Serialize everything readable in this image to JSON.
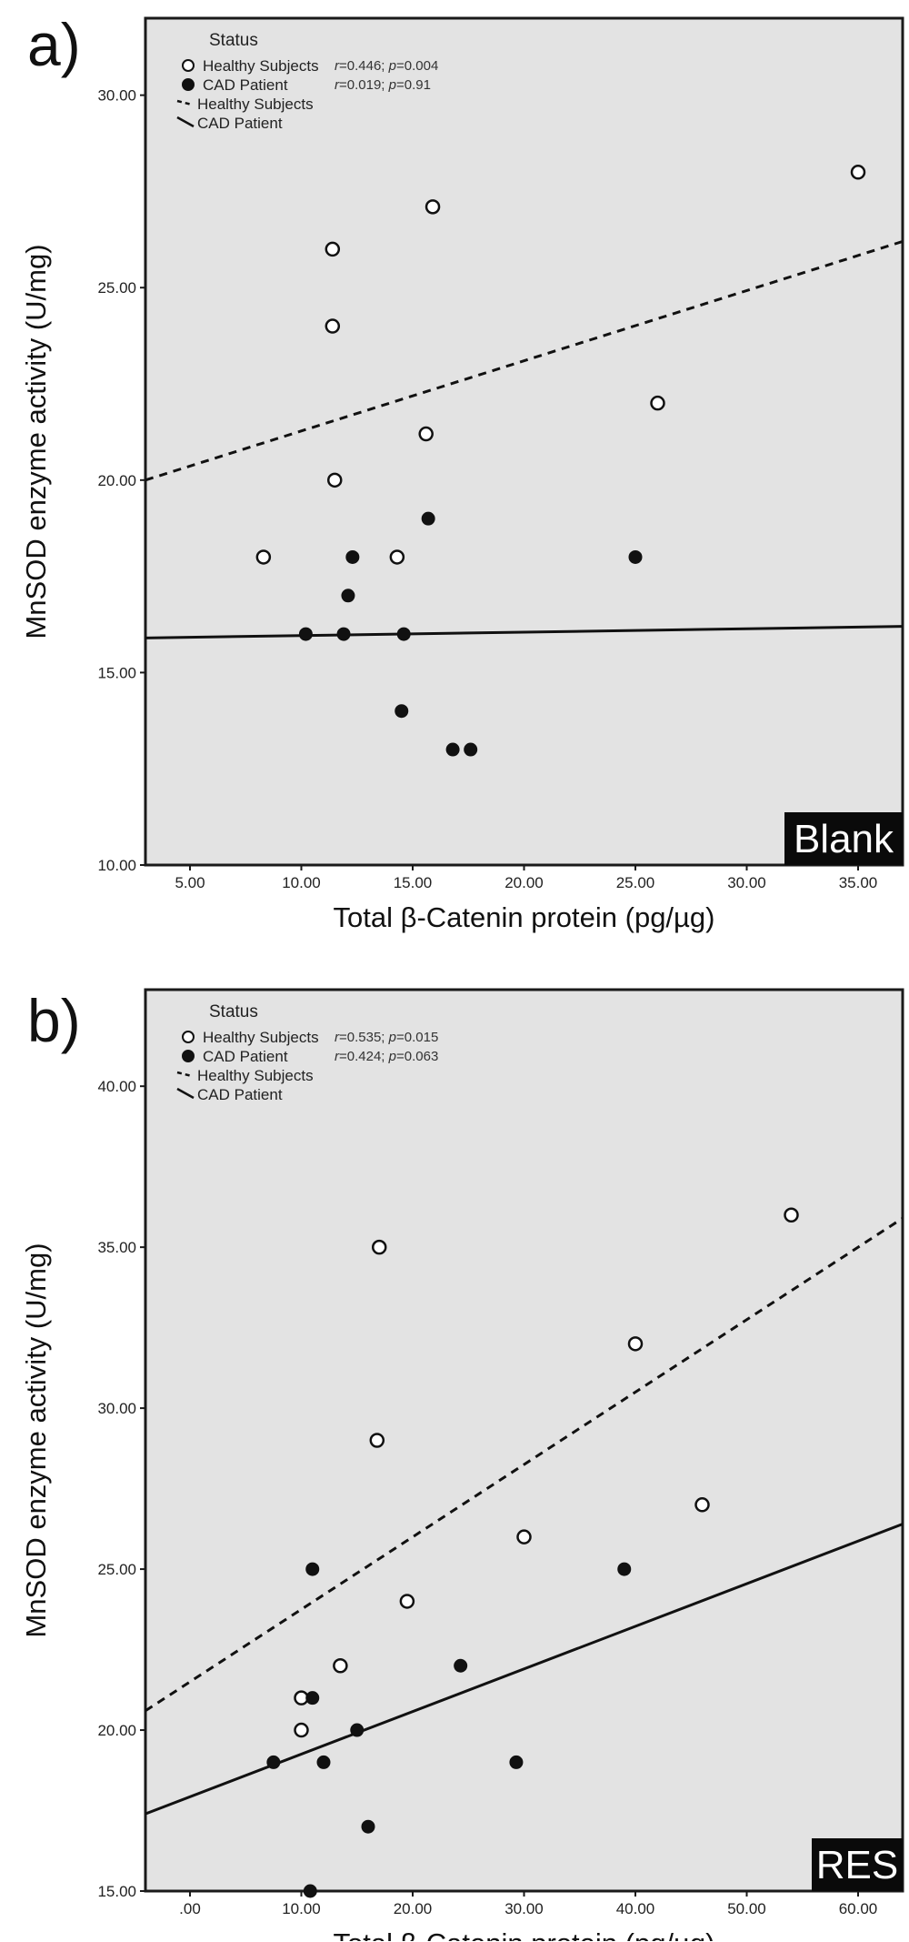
{
  "chart_data": [
    {
      "type": "scatter",
      "panel_label": "a)",
      "xlabel": "Total β-Catenin protein (pg/µg)",
      "ylabel": "MnSOD enzyme activity (U/mg)",
      "xlim": [
        3,
        37
      ],
      "ylim": [
        10,
        32
      ],
      "xticks": [
        5,
        10,
        15,
        20,
        25,
        30,
        35
      ],
      "xtick_labels": [
        "5.00",
        "10.00",
        "15.00",
        "20.00",
        "25.00",
        "30.00",
        "35.00"
      ],
      "yticks": [
        10,
        15,
        20,
        25,
        30
      ],
      "ytick_labels": [
        "10.00",
        "15.00",
        "20.00",
        "25.00",
        "30.00"
      ],
      "legend_title": "Status",
      "legend_position": "top-left",
      "badge": "Blank",
      "grid": false,
      "series": [
        {
          "name": "Healthy Subjects",
          "marker": "open-circle",
          "stats": "r=0.446; p=0.004",
          "fit_label": "Healthy Subjects",
          "fit_style": "dashed",
          "fit": {
            "x": [
              3,
              37
            ],
            "y": [
              20.0,
              26.2
            ]
          },
          "points": [
            {
              "x": 8.3,
              "y": 18
            },
            {
              "x": 11.4,
              "y": 26
            },
            {
              "x": 11.4,
              "y": 24
            },
            {
              "x": 11.5,
              "y": 20
            },
            {
              "x": 14.3,
              "y": 18
            },
            {
              "x": 15.6,
              "y": 21.2
            },
            {
              "x": 15.9,
              "y": 27.1
            },
            {
              "x": 26.0,
              "y": 22
            },
            {
              "x": 35.0,
              "y": 28
            }
          ]
        },
        {
          "name": "CAD Patient",
          "marker": "filled-circle",
          "stats": "r=0.019; p=0.91",
          "fit_label": "CAD Patient",
          "fit_style": "solid",
          "fit": {
            "x": [
              3,
              37
            ],
            "y": [
              15.9,
              16.2
            ]
          },
          "points": [
            {
              "x": 10.2,
              "y": 16
            },
            {
              "x": 11.9,
              "y": 16
            },
            {
              "x": 12.1,
              "y": 17
            },
            {
              "x": 12.3,
              "y": 18
            },
            {
              "x": 14.5,
              "y": 14
            },
            {
              "x": 14.6,
              "y": 16
            },
            {
              "x": 15.7,
              "y": 19
            },
            {
              "x": 16.8,
              "y": 13
            },
            {
              "x": 17.6,
              "y": 13
            },
            {
              "x": 25.0,
              "y": 18
            }
          ]
        }
      ]
    },
    {
      "type": "scatter",
      "panel_label": "b)",
      "xlabel": "Total β-Catenin protein (pg/µg)",
      "ylabel": "MnSOD enzyme activity (U/mg)",
      "xlim": [
        -4,
        64
      ],
      "ylim": [
        15,
        43
      ],
      "xticks": [
        0,
        10,
        20,
        30,
        40,
        50,
        60
      ],
      "xtick_labels": [
        ".00",
        "10.00",
        "20.00",
        "30.00",
        "40.00",
        "50.00",
        "60.00"
      ],
      "yticks": [
        15,
        20,
        25,
        30,
        35,
        40
      ],
      "ytick_labels": [
        "15.00",
        "20.00",
        "25.00",
        "30.00",
        "35.00",
        "40.00"
      ],
      "legend_title": "Status",
      "legend_position": "top-left",
      "badge": "RES",
      "grid": false,
      "series": [
        {
          "name": "Healthy Subjects",
          "marker": "open-circle",
          "stats": "r=0.535; p=0.015",
          "fit_label": "Healthy Subjects",
          "fit_style": "dashed",
          "fit": {
            "x": [
              -4,
              64
            ],
            "y": [
              20.6,
              35.9
            ]
          },
          "points": [
            {
              "x": 10,
              "y": 21
            },
            {
              "x": 10,
              "y": 20
            },
            {
              "x": 13.5,
              "y": 22
            },
            {
              "x": 16.8,
              "y": 29
            },
            {
              "x": 17,
              "y": 35
            },
            {
              "x": 19.5,
              "y": 24
            },
            {
              "x": 30,
              "y": 26
            },
            {
              "x": 40,
              "y": 32
            },
            {
              "x": 46,
              "y": 27
            },
            {
              "x": 54,
              "y": 36
            }
          ]
        },
        {
          "name": "CAD Patient",
          "marker": "filled-circle",
          "stats": "r=0.424; p=0.063",
          "fit_label": "CAD Patient",
          "fit_style": "solid",
          "fit": {
            "x": [
              -4,
              64
            ],
            "y": [
              17.4,
              26.4
            ]
          },
          "points": [
            {
              "x": 7.5,
              "y": 19
            },
            {
              "x": 10.8,
              "y": 15
            },
            {
              "x": 11,
              "y": 21
            },
            {
              "x": 11,
              "y": 25
            },
            {
              "x": 12,
              "y": 19
            },
            {
              "x": 15,
              "y": 20
            },
            {
              "x": 16,
              "y": 17
            },
            {
              "x": 24.3,
              "y": 22
            },
            {
              "x": 29.3,
              "y": 19
            },
            {
              "x": 39,
              "y": 25
            }
          ]
        }
      ]
    }
  ]
}
